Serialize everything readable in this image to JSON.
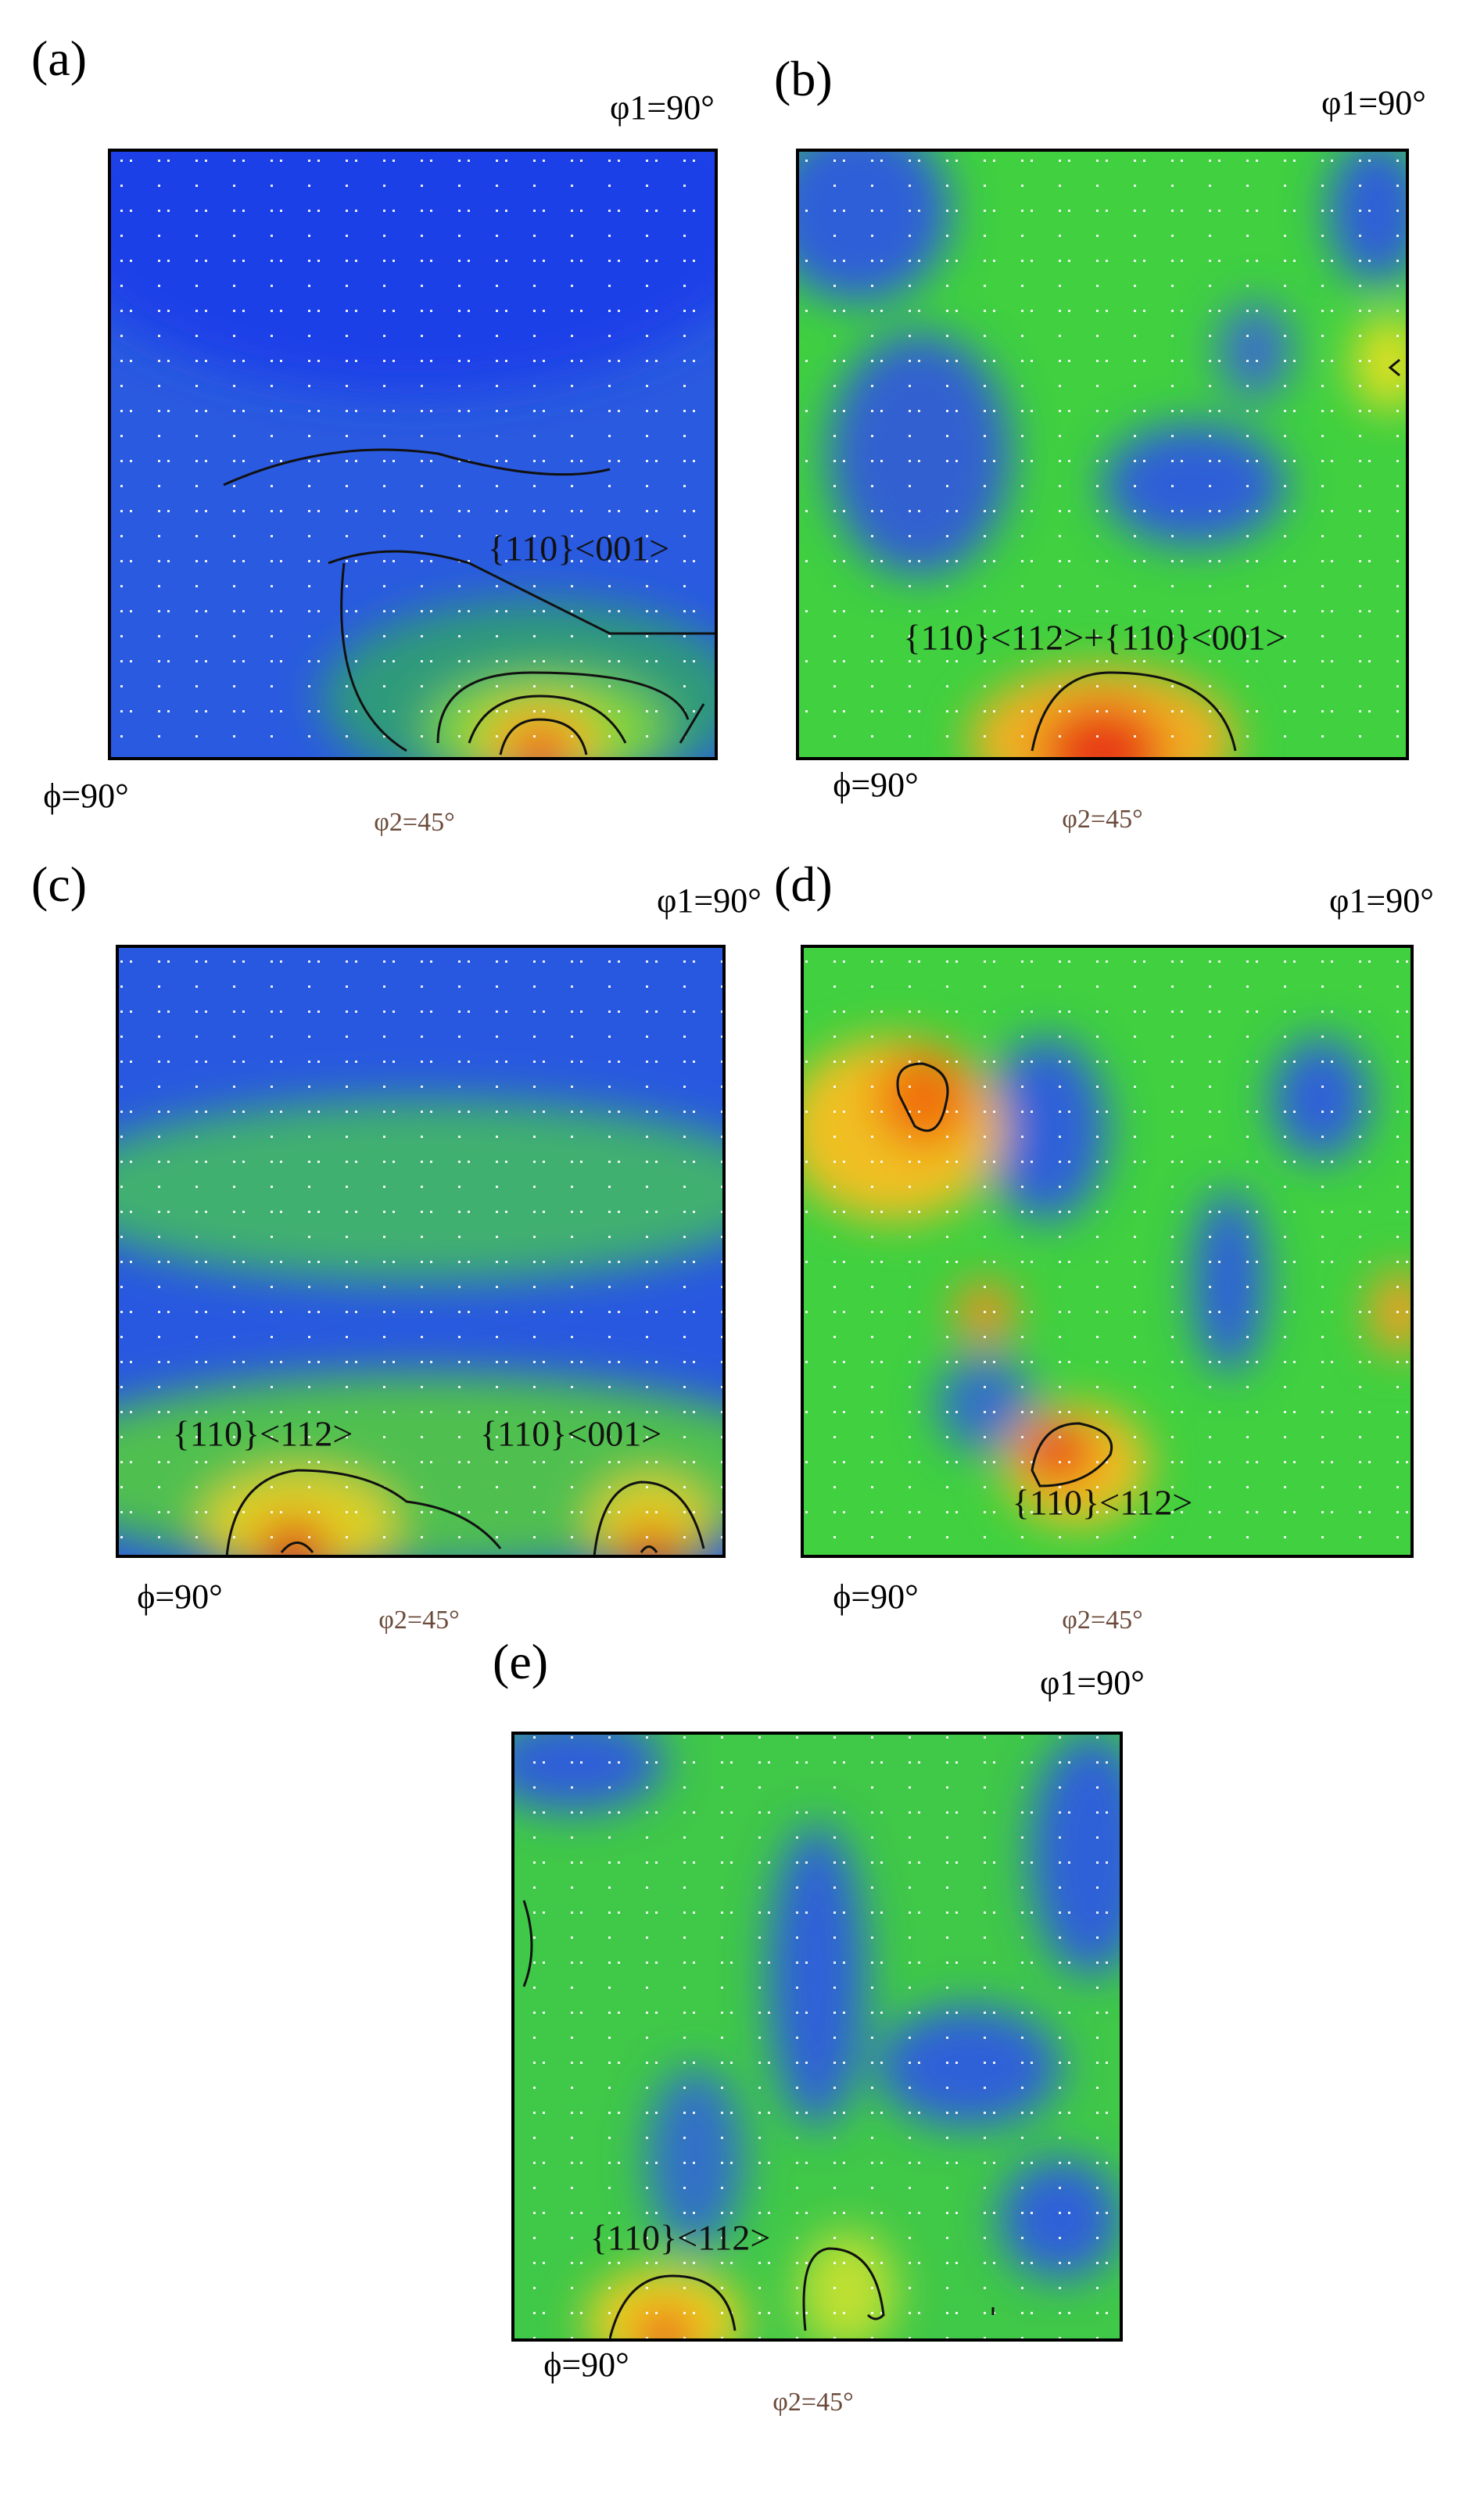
{
  "panels": [
    {
      "label": "(a)",
      "phi1": "φ1=90°",
      "phi": "ϕ=90°",
      "phi2": "φ2=45°",
      "annotations": [
        "{110}<001>"
      ]
    },
    {
      "label": "(b)",
      "phi1": "φ1=90°",
      "phi": "ϕ=90°",
      "phi2": "φ2=45°",
      "annotations": [
        "{110}<112>+{110}<001>"
      ]
    },
    {
      "label": "(c)",
      "phi1": "φ1=90°",
      "phi": "ϕ=90°",
      "phi2": "φ2=45°",
      "annotations": [
        "{110}<112>",
        "{110}<001>"
      ]
    },
    {
      "label": "(d)",
      "phi1": "φ1=90°",
      "phi": "ϕ=90°",
      "phi2": "φ2=45°",
      "annotations": [
        "{110}<112>"
      ]
    },
    {
      "label": "(e)",
      "phi1": "φ1=90°",
      "phi": "ϕ=90°",
      "phi2": "φ2=45°",
      "annotations": [
        "{110}<112>"
      ]
    }
  ]
}
